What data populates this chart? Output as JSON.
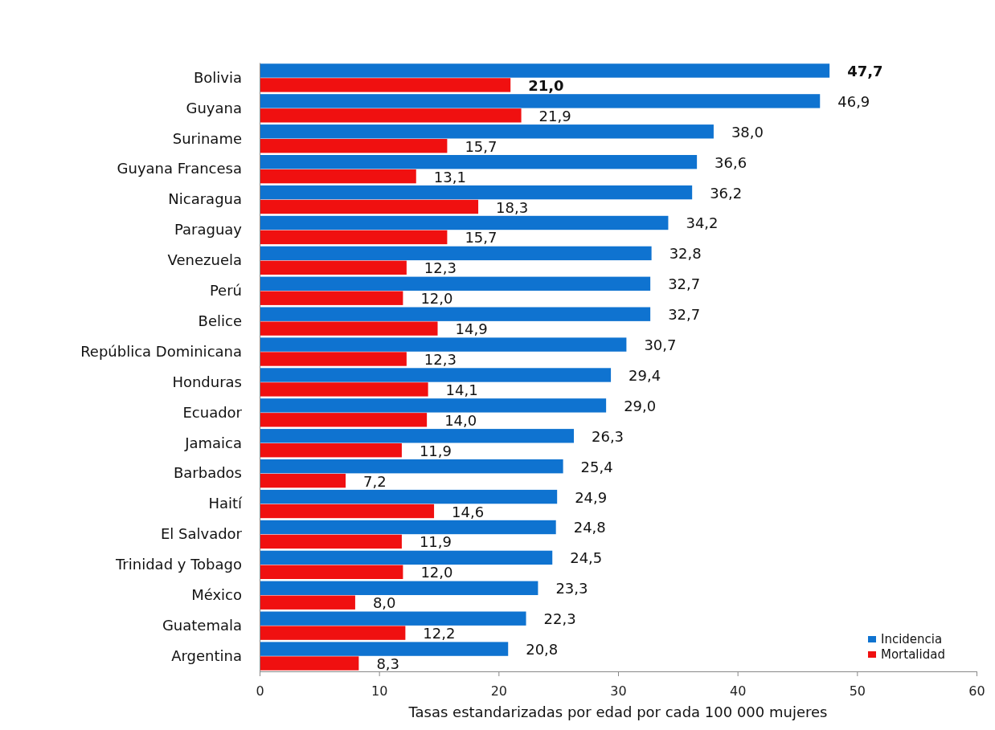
{
  "chart_data": {
    "type": "bar",
    "orientation": "horizontal",
    "xlabel": "Tasas estandarizadas por edad por cada 100 000 mujeres",
    "categories": [
      "Bolivia",
      "Guyana",
      "Suriname",
      "Guyana Francesa",
      "Nicaragua",
      "Paraguay",
      "Venezuela",
      "Perú",
      "Belice",
      "República Dominicana",
      "Honduras",
      "Ecuador",
      "Jamaica",
      "Barbados",
      "Haití",
      "El Salvador",
      "Trinidad y Tobago",
      "México",
      "Guatemala",
      "Argentina"
    ],
    "series": [
      {
        "name": "Incidencia",
        "color": "#0f73d0",
        "values": [
          47.7,
          46.9,
          38.0,
          36.6,
          36.2,
          34.2,
          32.8,
          32.7,
          32.7,
          30.7,
          29.4,
          29.0,
          26.3,
          25.4,
          24.9,
          24.8,
          24.5,
          23.3,
          22.3,
          20.8
        ],
        "value_labels": [
          "47,7",
          "46,9",
          "38,0",
          "36,6",
          "36,2",
          "34,2",
          "32,8",
          "32,7",
          "32,7",
          "30,7",
          "29,4",
          "29,0",
          "26,3",
          "25,4",
          "24,9",
          "24,8",
          "24,5",
          "23,3",
          "22,3",
          "20,8"
        ]
      },
      {
        "name": "Mortalidad",
        "color": "#f01010",
        "values": [
          21.0,
          21.9,
          15.7,
          13.1,
          18.3,
          15.7,
          12.3,
          12.0,
          14.9,
          12.3,
          14.1,
          14.0,
          11.9,
          7.2,
          14.6,
          11.9,
          12.0,
          8.0,
          12.2,
          8.3
        ],
        "value_labels": [
          "21,0",
          "21,9",
          "15,7",
          "13,1",
          "18,3",
          "15,7",
          "12,3",
          "12,0",
          "14,9",
          "12,3",
          "14,1",
          "14,0",
          "11,9",
          "7,2",
          "14,6",
          "11,9",
          "12,0",
          "8,0",
          "12,2",
          "8,3"
        ]
      }
    ],
    "xlim": [
      0,
      60
    ],
    "xticks": [
      0,
      10,
      20,
      30,
      40,
      50,
      60
    ],
    "grid": false,
    "legend": "bottom right"
  }
}
